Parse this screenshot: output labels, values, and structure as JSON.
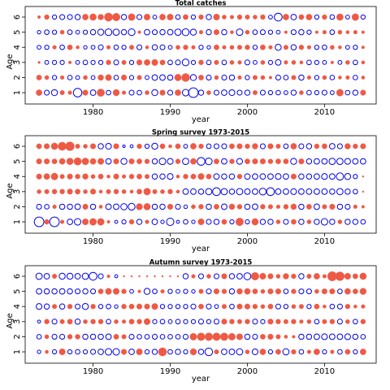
{
  "chart_data": [
    {
      "type": "bubble",
      "title": "Total catches",
      "xlabel": "year",
      "ylabel": "Age",
      "x": [
        1973,
        1974,
        1975,
        1976,
        1977,
        1978,
        1979,
        1980,
        1981,
        1982,
        1983,
        1984,
        1985,
        1986,
        1987,
        1988,
        1989,
        1990,
        1991,
        1992,
        1993,
        1994,
        1995,
        1996,
        1997,
        1998,
        1999,
        2000,
        2001,
        2002,
        2003,
        2004,
        2005,
        2006,
        2007,
        2008,
        2009,
        2010,
        2011,
        2012,
        2013,
        2014,
        2015
      ],
      "y": [
        1,
        2,
        3,
        4,
        5,
        6
      ],
      "values": [
        [
          1.2,
          -0.8,
          -1.2,
          0.7,
          0.5,
          -2.4,
          1.0,
          -1.0,
          1.9,
          -0.7,
          1.4,
          0.5,
          -0.8,
          -0.7,
          0.6,
          -1.2,
          1.0,
          -0.8,
          1.2,
          -1.4,
          -3.0,
          -0.9,
          0.6,
          -0.8,
          -1.0,
          -1.1,
          -0.8,
          -0.9,
          0.7,
          -0.8,
          -0.6,
          -0.7,
          -0.5,
          -0.9,
          0.6,
          -0.7,
          -0.6,
          -0.8,
          -0.5,
          1.6,
          -0.7,
          -0.9,
          1.0
        ],
        [
          0.9,
          0.6,
          -0.6,
          0.5,
          -0.7,
          -0.5,
          0.6,
          -0.5,
          1.1,
          1.3,
          -0.7,
          1.0,
          -0.6,
          0.7,
          -0.5,
          -1.0,
          -1.0,
          -0.9,
          1.5,
          2.2,
          -1.2,
          0.9,
          -0.8,
          0.6,
          -0.8,
          -0.9,
          0.5,
          -0.6,
          0.7,
          0.6,
          0.3,
          -0.8,
          -0.7,
          0.7,
          -0.9,
          0.5,
          -0.6,
          0.6,
          -0.7,
          0.4,
          0.5,
          -0.7,
          0.4
        ],
        [
          0.2,
          -0.5,
          -0.6,
          -0.6,
          0.3,
          -0.5,
          -0.7,
          -0.6,
          -0.6,
          0.8,
          -0.8,
          0.7,
          -0.6,
          1.0,
          1.2,
          1.3,
          0.9,
          -0.7,
          -0.8,
          -1.5,
          -0.6,
          0.8,
          -0.7,
          0.7,
          -0.7,
          0.6,
          0.5,
          -0.8,
          -0.5,
          0.6,
          -0.6,
          -1.0,
          0.5,
          0.6,
          0.4,
          -0.7,
          -0.6,
          -0.5,
          0.3,
          -0.5,
          0.6,
          -0.7,
          0.4
        ],
        [
          -0.5,
          -0.6,
          0.5,
          -0.7,
          0.9,
          0.4,
          -0.4,
          -0.5,
          -0.8,
          0.5,
          -0.7,
          -0.6,
          0.7,
          -0.8,
          0.4,
          -0.9,
          -0.8,
          -0.5,
          0.6,
          0.8,
          0.5,
          -0.6,
          -0.4,
          0.9,
          0.5,
          0.6,
          0.7,
          0.8,
          -0.6,
          0.9,
          0.5,
          -1.2,
          0.7,
          -0.9,
          0.8,
          0.5,
          -0.6,
          -0.7,
          0.6,
          0.4,
          -0.5,
          -0.6,
          0.3
        ],
        [
          -0.4,
          -0.7,
          -0.6,
          0.6,
          -0.7,
          -0.5,
          -0.6,
          -0.9,
          -1.2,
          -1.5,
          -1.3,
          -0.9,
          -1.5,
          0.3,
          -1.0,
          -0.8,
          -0.9,
          -1.0,
          -1.3,
          -1.6,
          -1.2,
          0.5,
          -0.9,
          1.0,
          -0.9,
          0.4,
          -1.4,
          0.6,
          -0.7,
          -0.8,
          -0.6,
          -0.5,
          0.3,
          -0.8,
          -0.9,
          -0.6,
          0.3,
          0.5,
          -0.7,
          0.6,
          0.4,
          0.5,
          0.3
        ],
        [
          0.3,
          0.8,
          -0.6,
          -0.8,
          -0.8,
          -0.9,
          1.2,
          1.5,
          1.1,
          2.3,
          2.0,
          -0.9,
          1.6,
          -0.8,
          1.3,
          -0.5,
          1.2,
          1.3,
          -0.7,
          0.9,
          -0.6,
          0.8,
          -0.9,
          1.3,
          0.6,
          0.5,
          0.8,
          0.7,
          0.6,
          0.8,
          -0.5,
          -2.0,
          1.2,
          -1.0,
          0.9,
          1.2,
          -0.6,
          0.8,
          -0.7,
          1.5,
          -0.5,
          1.6,
          -0.6
        ]
      ],
      "xlim": [
        1971.2,
        2016.7
      ],
      "ylim": [
        0.25,
        6.7
      ],
      "xticks": [
        1980,
        1990,
        2000,
        2010
      ],
      "yticks": [
        1,
        2,
        3,
        4,
        5,
        6
      ],
      "positive_color": "#ee5a45",
      "negative_color": "#0000ee"
    },
    {
      "type": "bubble",
      "title": "Spring survey 1973-2015",
      "xlabel": "year",
      "ylabel": "Age",
      "x": [
        1973,
        1974,
        1975,
        1976,
        1977,
        1978,
        1979,
        1980,
        1981,
        1982,
        1983,
        1984,
        1985,
        1986,
        1987,
        1988,
        1989,
        1990,
        1991,
        1992,
        1993,
        1994,
        1995,
        1996,
        1997,
        1998,
        1999,
        2000,
        2001,
        2002,
        2003,
        2004,
        2005,
        2006,
        2007,
        2008,
        2009,
        2010,
        2011,
        2012,
        2013,
        2014,
        2015
      ],
      "y": [
        1,
        2,
        3,
        4,
        5,
        6
      ],
      "values": [
        [
          -3.0,
          0.8,
          -3.0,
          0.5,
          -1.0,
          -1.4,
          1.3,
          1.6,
          1.6,
          0.3,
          -0.3,
          -0.6,
          0.8,
          -0.9,
          0.5,
          -1.0,
          -0.4,
          -1.8,
          -0.3,
          -0.7,
          -0.4,
          1.3,
          -0.8,
          -0.9,
          0.9,
          -0.6,
          2.0,
          -0.6,
          1.5,
          -0.9,
          -0.9,
          0.6,
          -0.8,
          0.9,
          -0.9,
          0.6,
          -0.9,
          -1.4,
          -0.9,
          0.6,
          -0.9,
          -0.9,
          -0.7
        ],
        [
          -0.8,
          -0.7,
          0.5,
          -0.9,
          -0.9,
          -1.0,
          1.0,
          -0.9,
          0.4,
          -1.0,
          -1.0,
          -1.3,
          -1.5,
          1.4,
          1.5,
          -0.9,
          -0.9,
          1.0,
          -0.8,
          -0.4,
          0.6,
          0.8,
          -0.9,
          0.9,
          -1.0,
          1.1,
          0.8,
          -0.9,
          -1.0,
          0.8,
          0.7,
          0.5,
          0.8,
          1.1,
          -0.9,
          0.9,
          -1.0,
          0.7,
          1.0,
          -0.9,
          -0.8,
          0.5,
          0.3
        ],
        [
          0.6,
          0.7,
          0.8,
          0.8,
          1.0,
          0.9,
          0.6,
          1.0,
          0.4,
          0.7,
          0.8,
          0.6,
          0.4,
          0.9,
          1.6,
          0.7,
          0.6,
          0.8,
          0.4,
          -1.0,
          -1.0,
          -0.9,
          -1.3,
          -2.0,
          -1.3,
          -0.9,
          -1.3,
          -1.0,
          -1.0,
          -1.5,
          -2.0,
          -1.0,
          -1.0,
          -1.1,
          -1.0,
          -1.0,
          -1.0,
          -1.0,
          -0.9,
          -1.3,
          -0.9,
          -0.7,
          0.1
        ],
        [
          1.0,
          1.2,
          1.6,
          0.7,
          1.0,
          0.8,
          1.1,
          0.6,
          0.9,
          0.4,
          1.0,
          0.5,
          0.8,
          0.9,
          0.7,
          -0.9,
          -0.9,
          -1.1,
          0.4,
          0.8,
          0.9,
          1.3,
          0.9,
          -1.0,
          -0.9,
          -0.9,
          0.8,
          -1.0,
          -1.0,
          -1.0,
          -1.0,
          -1.1,
          -1.0,
          1.0,
          -0.9,
          -0.9,
          -1.0,
          -1.1,
          -1.0,
          -1.7,
          -1.2,
          -0.6,
          0.1
        ],
        [
          1.0,
          1.0,
          0.9,
          1.2,
          1.5,
          1.9,
          1.6,
          1.2,
          1.3,
          -1.0,
          1.0,
          -1.2,
          1.0,
          0.9,
          0.8,
          -0.9,
          -1.4,
          -1.1,
          0.8,
          -1.3,
          1.2,
          -2.0,
          -1.5,
          0.9,
          -1.0,
          0.8,
          -1.1,
          0.9,
          1.0,
          1.0,
          0.8,
          0.9,
          0.9,
          -1.2,
          1.0,
          -0.9,
          -1.0,
          -1.0,
          -1.3,
          -1.3,
          -1.1,
          -1.0,
          -1.0
        ],
        [
          0.9,
          1.0,
          1.5,
          2.3,
          2.6,
          0.7,
          0.6,
          1.0,
          -0.9,
          -1.1,
          1.0,
          -0.2,
          -0.3,
          0.8,
          -0.6,
          -1.2,
          0.9,
          0.4,
          0.9,
          -0.5,
          1.2,
          0.8,
          -0.7,
          -0.8,
          -0.8,
          0.9,
          1.0,
          0.8,
          1.1,
          -0.8,
          1.0,
          0.7,
          -0.7,
          1.2,
          -0.8,
          -0.9,
          0.8,
          0.9,
          -1.0,
          -0.8,
          1.1,
          0.8,
          1.0
        ]
      ],
      "xlim": [
        1971.2,
        2016.7
      ],
      "ylim": [
        0.25,
        6.7
      ],
      "xticks": [
        1980,
        1990,
        2000,
        2010
      ],
      "yticks": [
        1,
        2,
        3,
        4,
        5,
        6
      ],
      "positive_color": "#ee5a45",
      "negative_color": "#0000ee"
    },
    {
      "type": "bubble",
      "title": "Autumn survey 1973-2015",
      "xlabel": "year",
      "ylabel": "Age",
      "x": [
        1973,
        1974,
        1975,
        1976,
        1977,
        1978,
        1979,
        1980,
        1981,
        1982,
        1983,
        1984,
        1985,
        1986,
        1987,
        1988,
        1989,
        1990,
        1991,
        1992,
        1993,
        1994,
        1995,
        1996,
        1997,
        1998,
        1999,
        2000,
        2001,
        2002,
        2003,
        2004,
        2005,
        2006,
        2007,
        2008,
        2009,
        2010,
        2011,
        2012,
        2013,
        2014,
        2015
      ],
      "y": [
        1,
        2,
        3,
        4,
        5,
        6
      ],
      "values": [
        [
          -0.4,
          0.4,
          -0.6,
          1.3,
          -0.6,
          -0.7,
          -0.6,
          -0.8,
          -1.0,
          -1.4,
          -1.4,
          1.0,
          -1.0,
          1.3,
          -0.6,
          -0.9,
          2.3,
          -0.7,
          -0.9,
          -0.6,
          1.4,
          -0.9,
          -1.9,
          0.7,
          -1.0,
          -1.0,
          -1.3,
          0.6,
          -1.1,
          1.2,
          -0.6,
          0.9,
          -1.3,
          0.8,
          -0.7,
          0.5,
          1.2,
          -0.6,
          0.5,
          -0.7,
          0.9,
          -0.6,
          1.2
        ],
        [
          -0.7,
          0.6,
          -0.8,
          -0.8,
          0.8,
          0.8,
          -0.9,
          -0.9,
          -0.9,
          -1.0,
          0.9,
          0.7,
          -0.8,
          -0.7,
          -0.7,
          -0.8,
          -0.7,
          -0.7,
          -0.7,
          -0.8,
          1.6,
          2.0,
          2.0,
          2.0,
          2.0,
          1.6,
          1.3,
          -0.9,
          -0.8,
          0.9,
          1.0,
          0.7,
          0.4,
          0.3,
          -0.9,
          -0.9,
          -1.0,
          -1.1,
          -1.0,
          -1.0,
          -1.1,
          -0.9,
          -0.7
        ],
        [
          -0.3,
          0.8,
          -0.8,
          0.7,
          0.9,
          -0.9,
          0.6,
          0.8,
          0.8,
          -0.7,
          0.6,
          0.5,
          0.9,
          0.8,
          1.3,
          -0.6,
          -0.7,
          -0.5,
          -0.7,
          -0.6,
          -0.6,
          -0.8,
          -0.6,
          -0.8,
          1.0,
          0.8,
          0.7,
          0.8,
          -0.8,
          -0.6,
          1.0,
          0.8,
          0.7,
          0.8,
          0.5,
          0.6,
          -0.7,
          0.7,
          0.8,
          -0.8,
          0.6,
          -0.7,
          0.8
        ],
        [
          -1.1,
          -0.9,
          0.7,
          -0.9,
          0.8,
          -0.8,
          -1.2,
          0.8,
          -0.6,
          -0.7,
          -0.4,
          0.8,
          0.9,
          1.0,
          1.0,
          1.3,
          -0.6,
          -0.6,
          -0.6,
          -0.6,
          -0.8,
          0.9,
          -0.8,
          -0.5,
          0.7,
          -0.7,
          1.0,
          1.0,
          0.8,
          0.6,
          0.9,
          -0.8,
          -0.6,
          0.6,
          0.7,
          -0.6,
          0.9,
          0.4,
          -0.7,
          -0.8,
          0.8,
          0.4,
          0.5
        ],
        [
          -1.0,
          -0.9,
          -0.9,
          -1.0,
          -0.9,
          -0.8,
          -0.9,
          -0.8,
          0.9,
          1.3,
          1.3,
          0.8,
          -0.5,
          0.3,
          -1.2,
          -0.7,
          0.5,
          -0.6,
          -0.5,
          -0.6,
          -0.4,
          0.7,
          -0.8,
          1.0,
          0.8,
          -0.9,
          1.1,
          1.2,
          0.9,
          0.6,
          1.0,
          1.0,
          -0.7,
          0.8,
          -0.8,
          -0.8,
          0.6,
          1.0,
          1.0,
          -0.7,
          1.2,
          0.9,
          1.4
        ],
        [
          -1.3,
          -1.0,
          0.7,
          -1.2,
          -1.2,
          -1.0,
          -1.3,
          -2.0,
          -0.8,
          0.3,
          -0.3,
          0.1,
          0.1,
          0.1,
          0.1,
          0.1,
          0.1,
          0.1,
          0.1,
          -0.9,
          0.5,
          -0.8,
          0.6,
          -0.8,
          1.0,
          -0.9,
          -1.0,
          -1.6,
          2.0,
          1.3,
          1.0,
          0.6,
          1.1,
          0.8,
          -0.9,
          0.7,
          1.2,
          0.5,
          2.9,
          2.6,
          1.3,
          0.9,
          1.5
        ]
      ],
      "xlim": [
        1971.2,
        2016.7
      ],
      "ylim": [
        0.25,
        6.7
      ],
      "xticks": [
        1980,
        1990,
        2000,
        2010
      ],
      "yticks": [
        1,
        2,
        3,
        4,
        5,
        6
      ],
      "positive_color": "#ee5a45",
      "negative_color": "#0000ee"
    }
  ]
}
